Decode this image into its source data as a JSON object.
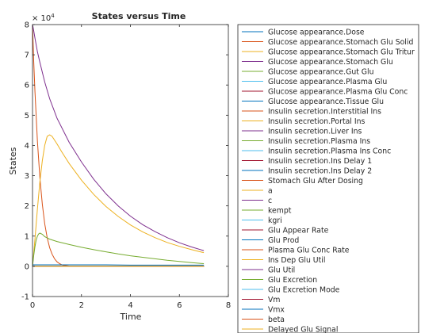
{
  "chart_data": {
    "type": "line",
    "title": "States versus Time",
    "xlabel": "Time",
    "ylabel": "States",
    "exponent_label": "× 10^4",
    "exponent_base": "× 10",
    "exponent_power": "4",
    "xlim": [
      0,
      8
    ],
    "ylim": [
      -1,
      8
    ],
    "xticks": [
      "0",
      "2",
      "4",
      "6",
      "8"
    ],
    "yticks": [
      "-1",
      "0",
      "1",
      "2",
      "3",
      "4",
      "5",
      "6",
      "7",
      "8"
    ],
    "grid": false,
    "legend_position": "right",
    "series": [
      {
        "name": "Glucose appearance.Dose",
        "color": "#0072BD"
      },
      {
        "name": "Glucose appearance.Stomach Glu Solid",
        "color": "#D95319",
        "x": [
          0,
          0.05,
          0.1,
          0.2,
          0.3,
          0.4,
          0.5,
          0.6,
          0.7,
          0.8,
          0.9,
          1.0,
          1.1,
          1.2,
          1.3,
          1.4,
          1.5,
          1.6
        ],
        "values": [
          8.0,
          6.8,
          5.78,
          4.14,
          2.93,
          2.05,
          1.41,
          0.95,
          0.62,
          0.4,
          0.25,
          0.15,
          0.09,
          0.05,
          0.03,
          0.02,
          0.01,
          0.0
        ]
      },
      {
        "name": "Glucose appearance.Stomach Glu Tritur",
        "color": "#EDB120",
        "x": [
          0,
          0.1,
          0.2,
          0.3,
          0.4,
          0.5,
          0.6,
          0.7,
          0.8,
          1.0,
          1.2,
          1.5,
          2.0,
          2.5,
          3.0,
          3.5,
          4.0,
          4.5,
          5.0,
          5.5,
          6.0,
          6.5,
          7.0
        ],
        "values": [
          0,
          0.9,
          1.9,
          2.8,
          3.5,
          4.0,
          4.3,
          4.35,
          4.3,
          4.05,
          3.78,
          3.4,
          2.85,
          2.38,
          1.98,
          1.65,
          1.37,
          1.14,
          0.95,
          0.79,
          0.66,
          0.55,
          0.45
        ]
      },
      {
        "name": "Glucose appearance.Stomach Glu",
        "color": "#7E2F8E",
        "x": [
          0,
          0.05,
          0.1,
          0.2,
          0.3,
          0.5,
          0.7,
          1.0,
          1.5,
          2.0,
          2.5,
          3.0,
          3.5,
          4.0,
          4.5,
          5.0,
          5.5,
          6.0,
          6.5,
          7.0
        ],
        "values": [
          8.0,
          7.8,
          7.55,
          7.1,
          6.75,
          6.1,
          5.55,
          4.9,
          4.1,
          3.45,
          2.88,
          2.4,
          2.0,
          1.66,
          1.38,
          1.15,
          0.95,
          0.78,
          0.64,
          0.52
        ]
      },
      {
        "name": "Glucose appearance.Gut Glu",
        "color": "#77AC30",
        "x": [
          0,
          0.05,
          0.1,
          0.15,
          0.2,
          0.25,
          0.3,
          0.4,
          0.5,
          0.7,
          1.0,
          1.5,
          2.0,
          2.5,
          3.0,
          3.5,
          4.0,
          4.5,
          5.0,
          5.5,
          6.0,
          6.5,
          7.0
        ],
        "values": [
          0,
          0.35,
          0.65,
          0.87,
          1.0,
          1.07,
          1.1,
          1.06,
          0.98,
          0.9,
          0.82,
          0.72,
          0.63,
          0.55,
          0.48,
          0.41,
          0.35,
          0.3,
          0.25,
          0.2,
          0.16,
          0.12,
          0.09
        ]
      },
      {
        "name": "Glucose appearance.Plasma Glu",
        "color": "#4DBEEE"
      },
      {
        "name": "Glucose appearance.Plasma Glu Conc",
        "color": "#A2142F"
      },
      {
        "name": "Glucose appearance.Tissue Glu",
        "color": "#0072BD",
        "x": [
          0,
          1,
          2,
          3,
          4,
          5,
          6,
          7
        ],
        "values": [
          0.05,
          0.05,
          0.05,
          0.05,
          0.04,
          0.04,
          0.04,
          0.04
        ]
      },
      {
        "name": "Insulin secretion.Interstitial Ins",
        "color": "#D95319"
      },
      {
        "name": "Insulin secretion.Portal Ins",
        "color": "#EDB120"
      },
      {
        "name": "Insulin secretion.Liver Ins",
        "color": "#7E2F8E"
      },
      {
        "name": "Insulin secretion.Plasma Ins",
        "color": "#77AC30"
      },
      {
        "name": "Insulin secretion.Plasma Ins Conc",
        "color": "#4DBEEE"
      },
      {
        "name": "Insulin secretion.Ins Delay 1",
        "color": "#A2142F"
      },
      {
        "name": "Insulin secretion.Ins Delay 2",
        "color": "#0072BD"
      },
      {
        "name": "Stomach Glu After Dosing",
        "color": "#D95319"
      },
      {
        "name": "a",
        "color": "#EDB120"
      },
      {
        "name": "c",
        "color": "#7E2F8E"
      },
      {
        "name": "kempt",
        "color": "#77AC30"
      },
      {
        "name": "kgri",
        "color": "#4DBEEE"
      },
      {
        "name": "Glu Appear Rate",
        "color": "#A2142F"
      },
      {
        "name": "Glu Prod",
        "color": "#0072BD"
      },
      {
        "name": "Plasma Glu Conc Rate",
        "color": "#D95319"
      },
      {
        "name": "Ins Dep Glu Util",
        "color": "#EDB120"
      },
      {
        "name": "Glu Util",
        "color": "#7E2F8E"
      },
      {
        "name": "Glu Excretion",
        "color": "#77AC30"
      },
      {
        "name": "Glu Excretion Mode",
        "color": "#4DBEEE"
      },
      {
        "name": "Vm",
        "color": "#A2142F"
      },
      {
        "name": "Vmx",
        "color": "#0072BD"
      },
      {
        "name": "beta",
        "color": "#D95319"
      },
      {
        "name": "Delayed Glu Signal",
        "color": "#EDB120"
      }
    ]
  }
}
